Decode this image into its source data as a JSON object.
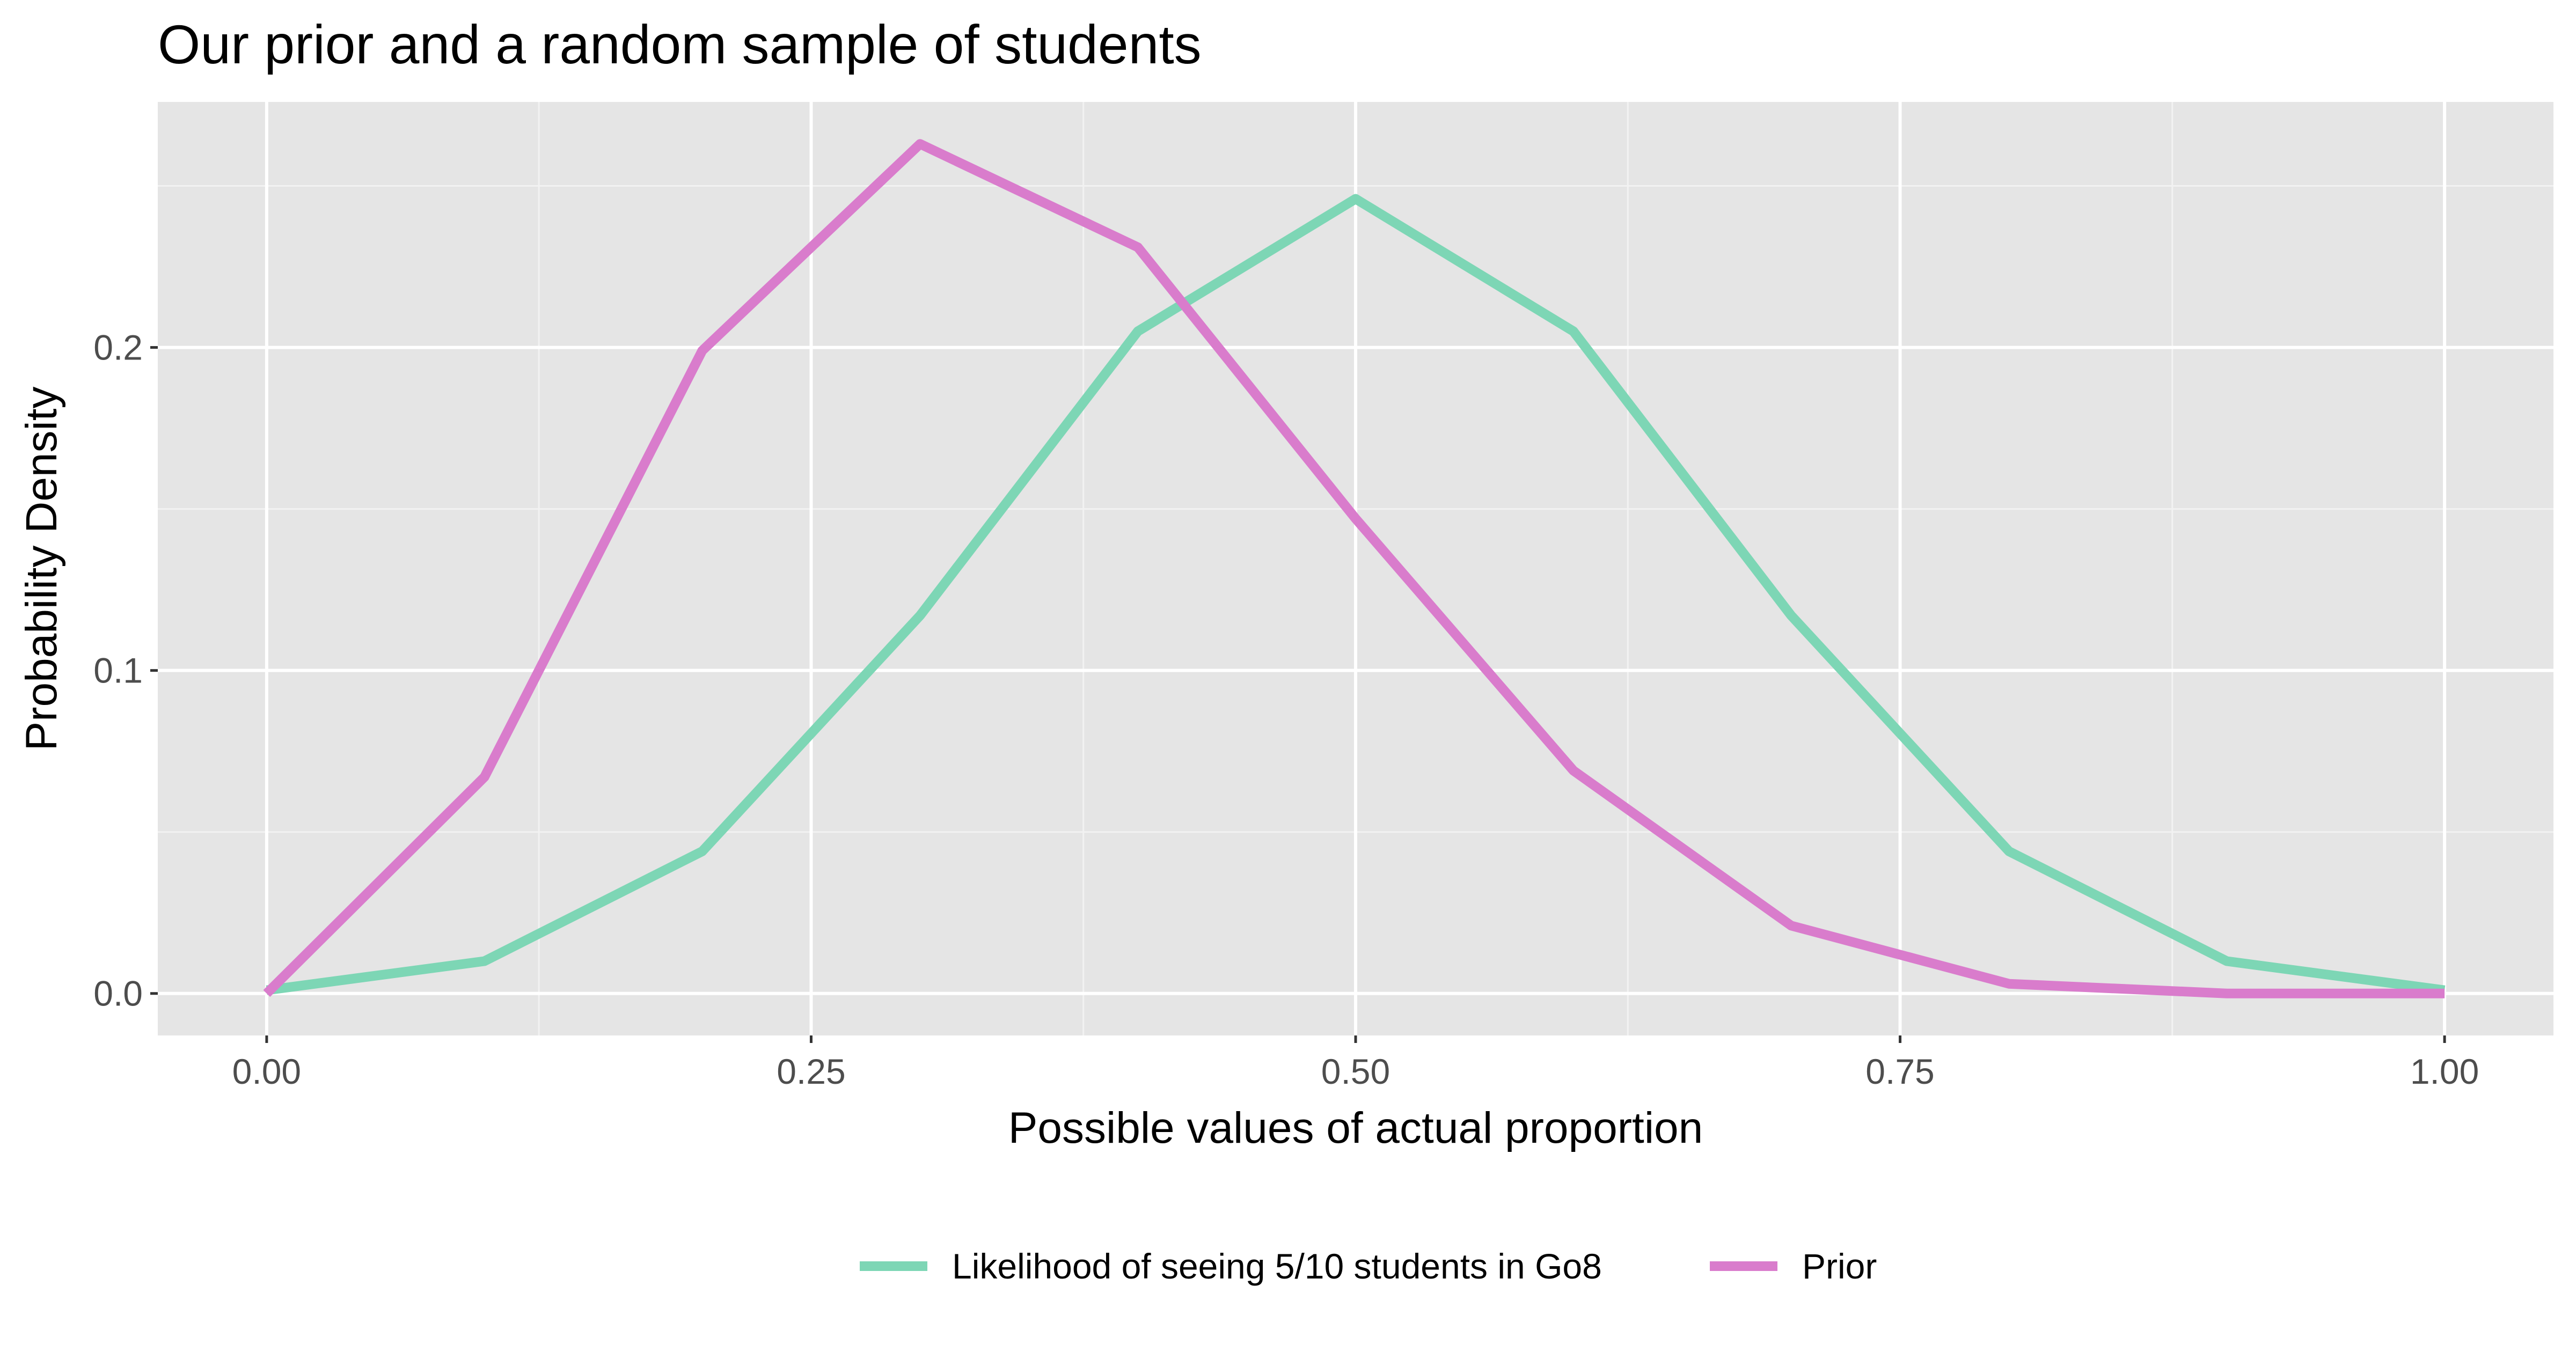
{
  "chart_data": {
    "type": "line",
    "title": "Our prior and a random sample of students",
    "xlabel": "Possible values of actual proportion",
    "ylabel": "Probability Density",
    "xlim": [
      -0.05,
      1.05
    ],
    "ylim": [
      -0.013,
      0.276
    ],
    "x_ticks": [
      0.0,
      0.25,
      0.5,
      0.75,
      1.0
    ],
    "x_tick_labels": [
      "0.00",
      "0.25",
      "0.50",
      "0.75",
      "1.00"
    ],
    "y_ticks": [
      0.0,
      0.1,
      0.2
    ],
    "y_tick_labels": [
      "0.0",
      "0.1",
      "0.2"
    ],
    "grid": true,
    "legend_position": "bottom",
    "x": [
      0.0,
      0.1,
      0.2,
      0.3,
      0.4,
      0.5,
      0.6,
      0.7,
      0.8,
      0.9,
      1.0
    ],
    "series": [
      {
        "name": "Likelihood of seeing 5/10 students in Go8",
        "color": "#7dd6b5",
        "values": [
          0.001,
          0.01,
          0.044,
          0.117,
          0.205,
          0.246,
          0.205,
          0.117,
          0.044,
          0.01,
          0.001
        ]
      },
      {
        "name": "Prior",
        "color": "#d97ccc",
        "values": [
          0.0,
          0.067,
          0.199,
          0.263,
          0.231,
          0.147,
          0.069,
          0.021,
          0.003,
          0.0,
          0.0
        ]
      }
    ]
  },
  "colors": {
    "panel_background": "#e5e5e5",
    "grid_major": "#ffffff",
    "grid_minor": "#f2f2f2"
  }
}
